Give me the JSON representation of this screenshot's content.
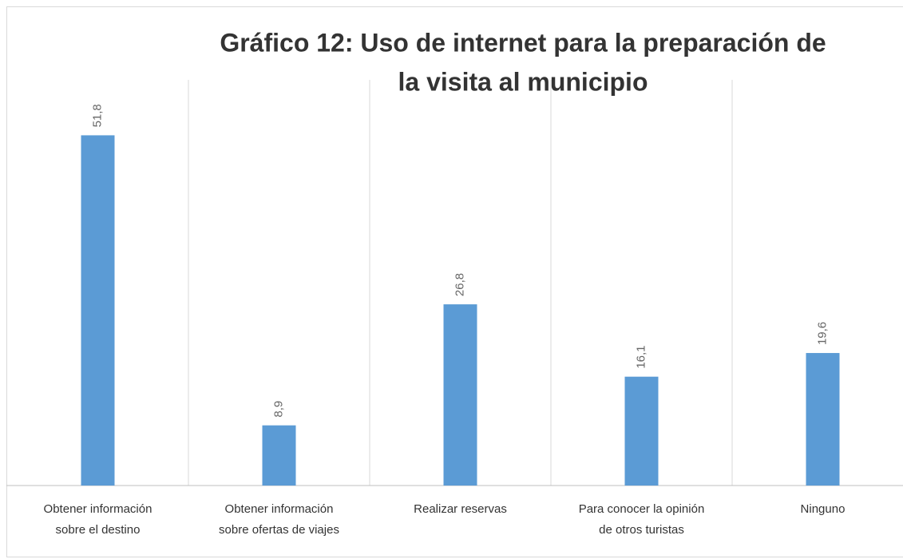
{
  "chart_data": {
    "type": "bar",
    "title": [
      "Gráfico 12: Uso de internet para la preparación de",
      "la visita al municipio"
    ],
    "categories": [
      [
        "Obtener información",
        "sobre el destino"
      ],
      [
        "Obtener información",
        "sobre ofertas de viajes"
      ],
      [
        "Realizar reservas"
      ],
      [
        "Para conocer la opinión",
        "de otros turistas"
      ],
      [
        "Ninguno"
      ]
    ],
    "values": [
      51.8,
      8.9,
      26.8,
      16.1,
      19.6
    ],
    "value_labels": [
      "51,8",
      "8,9",
      "26,8",
      "16,1",
      "19,6"
    ],
    "color": "#5b9bd5",
    "ylim": [
      0,
      60
    ]
  }
}
